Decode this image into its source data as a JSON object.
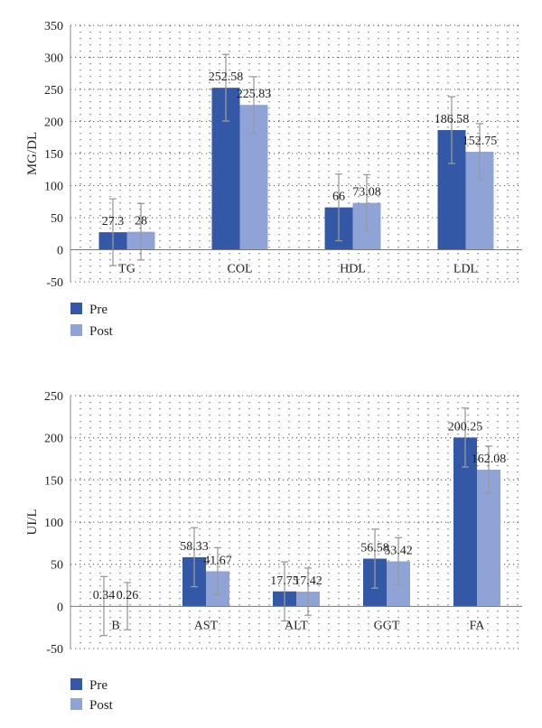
{
  "colors": {
    "pre": "#3358a5",
    "post": "#8fa3d6",
    "grid": "#555555",
    "error": "#9a9a9a"
  },
  "legend": {
    "pre": "Pre",
    "post": "Post"
  },
  "chart_data": [
    {
      "type": "bar",
      "ylabel": "MG/DL",
      "ylim": [
        -50,
        350
      ],
      "ytick_step": 50,
      "grid": true,
      "legend_position": "bottom-left",
      "categories": [
        "TG",
        "COL",
        "HDL",
        "LDL"
      ],
      "series": [
        {
          "name": "Pre",
          "values": [
            27.3,
            252.58,
            66,
            186.58
          ],
          "labels": [
            "27.3",
            "252.58",
            "66",
            "186.58"
          ],
          "errors": [
            52,
            52,
            52,
            52
          ]
        },
        {
          "name": "Post",
          "values": [
            28,
            225.83,
            73.08,
            152.75
          ],
          "labels": [
            "28",
            "225.83",
            "73.08",
            "152.75"
          ],
          "errors": [
            44,
            44,
            44,
            44
          ]
        }
      ]
    },
    {
      "type": "bar",
      "ylabel": "UI/L",
      "ylim": [
        -50,
        250
      ],
      "ytick_step": 50,
      "grid": true,
      "legend_position": "bottom-left",
      "categories": [
        "B",
        "AST",
        "ALT",
        "GGT",
        "FA"
      ],
      "series": [
        {
          "name": "Pre",
          "values": [
            0.34,
            58.33,
            17.75,
            56.58,
            200.25
          ],
          "labels": [
            "0.34",
            "58.33",
            "17.75",
            "56.58",
            "200.25"
          ],
          "errors": [
            35,
            35,
            35,
            35,
            35
          ]
        },
        {
          "name": "Post",
          "values": [
            0.26,
            41.67,
            17.42,
            53.42,
            162.08
          ],
          "labels": [
            "0.26",
            "41.67",
            "17.42",
            "53.42",
            "162.08"
          ],
          "errors": [
            28,
            28,
            28,
            28,
            28
          ]
        }
      ]
    }
  ]
}
